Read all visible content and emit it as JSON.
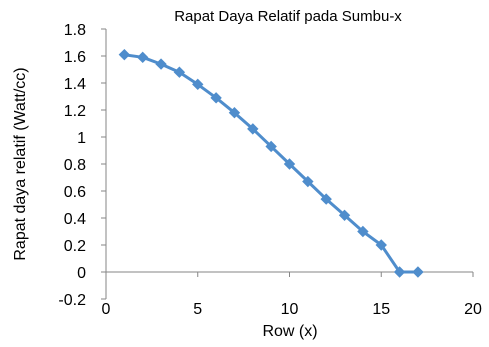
{
  "chart_data": {
    "type": "scatter",
    "title": "Rapat Daya Relatif pada Sumbu-x",
    "xlabel": "Row (x)",
    "ylabel": "Rapat daya relatif  (Watt/cc)",
    "xlim": [
      0,
      20
    ],
    "ylim": [
      -0.2,
      1.8
    ],
    "x_ticks": [
      0,
      5,
      10,
      15,
      20
    ],
    "y_ticks": [
      -0.2,
      0,
      0.2,
      0.4,
      0.6,
      0.8,
      1,
      1.2,
      1.4,
      1.6,
      1.8
    ],
    "x_tick_labels": [
      "0",
      "5",
      "10",
      "15",
      "20"
    ],
    "y_tick_labels": [
      "-0.2",
      "0",
      "0.2",
      "0.4",
      "0.6",
      "0.8",
      "1",
      "1.2",
      "1.4",
      "1.6",
      "1.8"
    ],
    "grid": false,
    "legend": "none",
    "marker": "diamond",
    "line_style": "solid",
    "series_color": "#4f8dcc",
    "series": [
      {
        "x": [
          1,
          2,
          3,
          4,
          5,
          6,
          7,
          8,
          9,
          10,
          11,
          12,
          13,
          14,
          15,
          16,
          17
        ],
        "y": [
          1.61,
          1.59,
          1.54,
          1.48,
          1.39,
          1.29,
          1.18,
          1.06,
          0.93,
          0.8,
          0.67,
          0.54,
          0.42,
          0.3,
          0.2,
          0.0,
          0.0
        ]
      }
    ]
  }
}
